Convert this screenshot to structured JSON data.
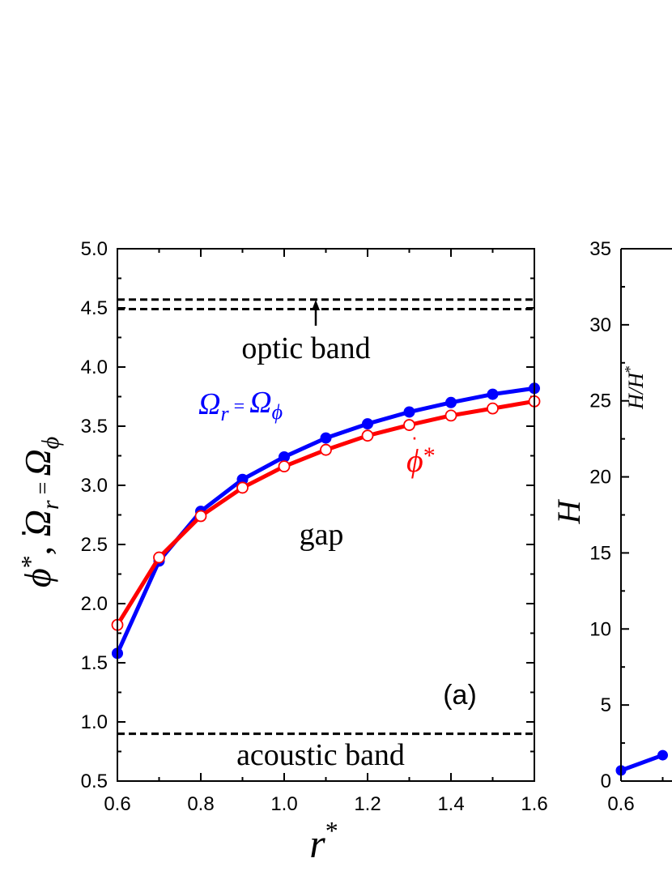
{
  "chart_data": [
    {
      "type": "line",
      "panel_label": "(a)",
      "xlabel": "r*",
      "ylabel": "φ̇*,   Ω_r = Ω_φ",
      "xlim": [
        0.6,
        1.6
      ],
      "ylim": [
        0.5,
        5.0
      ],
      "xticks": [
        "0.6",
        "0.8",
        "1.0",
        "1.2",
        "1.4",
        "1.6"
      ],
      "yticks": [
        "0.5",
        "1.0",
        "1.5",
        "2.0",
        "2.5",
        "3.0",
        "3.5",
        "4.0",
        "4.5",
        "5.0"
      ],
      "x": [
        0.6,
        0.7,
        0.8,
        0.9,
        1.0,
        1.1,
        1.2,
        1.3,
        1.4,
        1.5,
        1.6
      ],
      "series": [
        {
          "name": "Ω_r = Ω_φ",
          "color": "#0000ff",
          "marker": "filled-circle",
          "values": [
            1.58,
            2.36,
            2.78,
            3.05,
            3.24,
            3.4,
            3.52,
            3.62,
            3.7,
            3.77,
            3.82
          ]
        },
        {
          "name": "φ̇*",
          "color": "#ff0000",
          "marker": "open-circle",
          "values": [
            1.82,
            2.39,
            2.74,
            2.98,
            3.16,
            3.3,
            3.42,
            3.51,
            3.59,
            3.65,
            3.71
          ]
        }
      ],
      "reference_lines": [
        {
          "y": 4.57,
          "style": "dashed"
        },
        {
          "y": 4.49,
          "style": "dashed"
        },
        {
          "y": 0.9,
          "style": "dashed"
        }
      ],
      "annotations": {
        "optic": "optic band",
        "gap": "gap",
        "acoustic": "acoustic band"
      },
      "grid": false
    },
    {
      "type": "line",
      "ylabel": "H",
      "inset_label": "H/H*",
      "ylim": [
        0,
        35
      ],
      "yticks": [
        "0",
        "5",
        "10",
        "15",
        "20",
        "25",
        "30",
        "35"
      ],
      "xticks": [
        "0.6"
      ],
      "x": [
        0.6,
        0.7
      ],
      "series": [
        {
          "color": "#0000ff",
          "marker": "filled-circle",
          "values": [
            0.7,
            1.7
          ]
        }
      ]
    }
  ]
}
